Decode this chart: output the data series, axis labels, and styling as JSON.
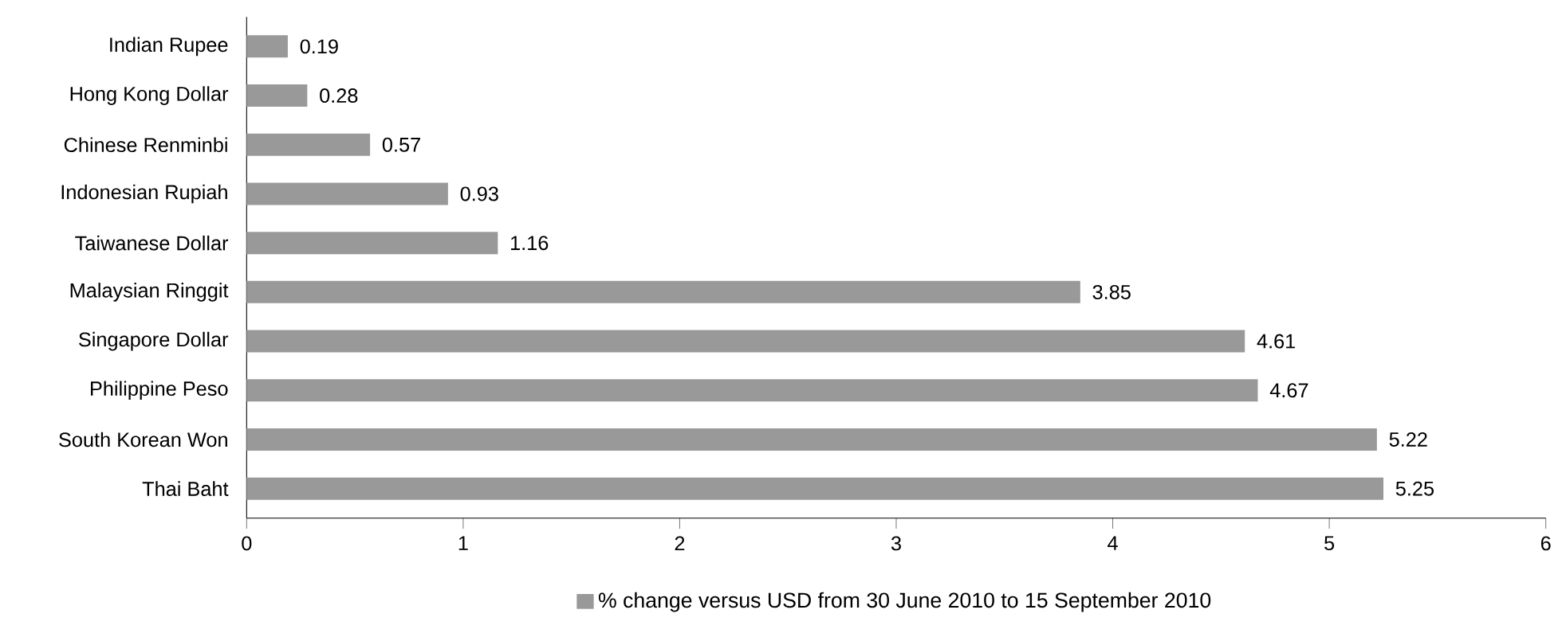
{
  "chart_data": {
    "type": "bar",
    "orientation": "horizontal",
    "categories": [
      "Indian Rupee",
      "Hong Kong Dollar",
      "Chinese Renminbi",
      "Indonesian Rupiah",
      "Taiwanese Dollar",
      "Malaysian Ringgit",
      "Singapore Dollar",
      "Philippine Peso",
      "South Korean Won",
      "Thai Baht"
    ],
    "series": [
      {
        "name": "% change versus USD from 30 June 2010 to 15 September 2010",
        "color": "#999999",
        "values": [
          0.19,
          0.28,
          0.57,
          0.93,
          1.16,
          3.85,
          4.61,
          4.67,
          5.22,
          5.25
        ]
      }
    ],
    "xlim": [
      0,
      6
    ],
    "xticks": [
      0,
      1,
      2,
      3,
      4,
      5,
      6
    ],
    "data_labels": true,
    "legend": "bottom",
    "grid": false
  }
}
